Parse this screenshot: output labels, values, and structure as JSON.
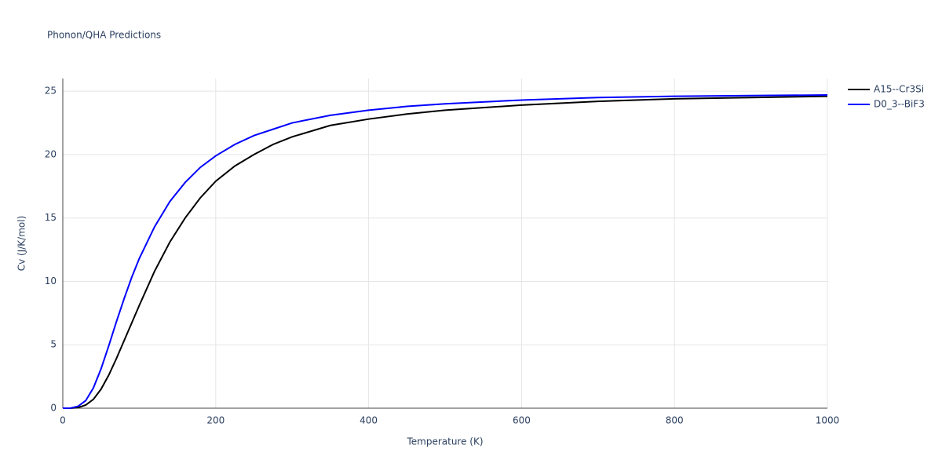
{
  "chart_data": {
    "type": "line",
    "title": "Phonon/QHA Predictions",
    "x_label": "Temperature (K)",
    "y_label": "Cv (J/K/mol)",
    "x": [
      0,
      10,
      20,
      30,
      40,
      50,
      60,
      70,
      80,
      90,
      100,
      120,
      140,
      160,
      180,
      200,
      225,
      250,
      275,
      300,
      350,
      400,
      450,
      500,
      600,
      700,
      800,
      900,
      1000
    ],
    "series": [
      {
        "name": "A15--Cr3Si",
        "color": "#000000",
        "values": [
          0,
          0,
          0.05,
          0.25,
          0.7,
          1.5,
          2.6,
          3.9,
          5.3,
          6.7,
          8.1,
          10.8,
          13.1,
          15.0,
          16.6,
          17.9,
          19.1,
          20.0,
          20.8,
          21.4,
          22.3,
          22.8,
          23.2,
          23.5,
          23.9,
          24.2,
          24.4,
          24.5,
          24.6
        ]
      },
      {
        "name": "D0_3--BiF3",
        "color": "#0000ff",
        "values": [
          0,
          0.01,
          0.15,
          0.6,
          1.6,
          3.1,
          4.9,
          6.8,
          8.6,
          10.3,
          11.8,
          14.3,
          16.3,
          17.8,
          19.0,
          19.9,
          20.8,
          21.5,
          22.0,
          22.5,
          23.1,
          23.5,
          23.8,
          24.0,
          24.3,
          24.5,
          24.6,
          24.65,
          24.7
        ]
      }
    ],
    "xlim": [
      0,
      1000
    ],
    "ylim": [
      0,
      26
    ],
    "xticks": [
      0,
      200,
      400,
      600,
      800,
      1000
    ],
    "yticks": [
      0,
      5,
      10,
      15,
      20,
      25
    ],
    "grid": true,
    "legend": "right"
  }
}
